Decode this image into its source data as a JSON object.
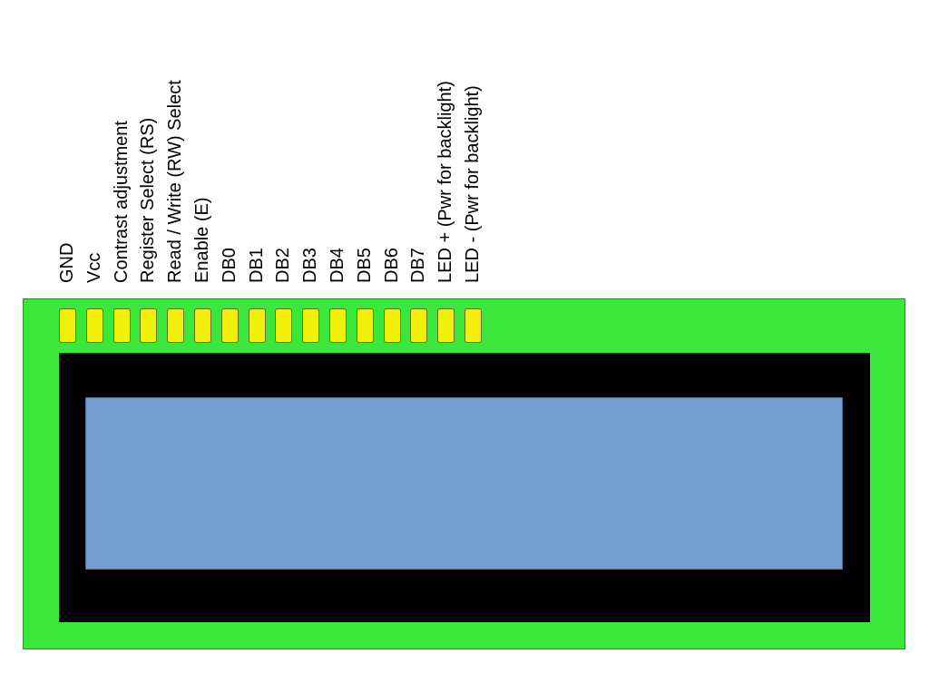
{
  "pins": [
    {
      "label": "GND"
    },
    {
      "label": "Vcc"
    },
    {
      "label": "Contrast adjustment"
    },
    {
      "label": "Register Select (RS)"
    },
    {
      "label": "Read / Write (RW) Select"
    },
    {
      "label": "Enable (E)"
    },
    {
      "label": "DB0"
    },
    {
      "label": "DB1"
    },
    {
      "label": "DB2"
    },
    {
      "label": "DB3"
    },
    {
      "label": "DB4"
    },
    {
      "label": "DB5"
    },
    {
      "label": "DB6"
    },
    {
      "label": "DB7"
    },
    {
      "label": "LED + (Pwr for backlight)"
    },
    {
      "label": "LED - (Pwr for backlight)"
    }
  ],
  "colors": {
    "board": "#39e83b",
    "pad": "#f2f00a",
    "bezel": "#000000",
    "screen": "#729fcf"
  }
}
